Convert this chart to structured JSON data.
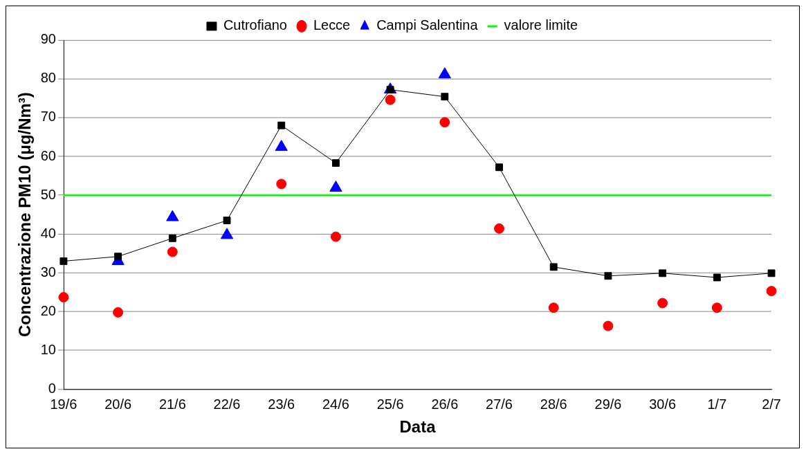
{
  "chart_data": {
    "type": "line",
    "xlabel": "Data",
    "ylabel": "Concentrazione PM10 (μg/Nm³)",
    "categories": [
      "19/6",
      "20/6",
      "21/6",
      "22/6",
      "23/6",
      "24/6",
      "25/6",
      "26/6",
      "27/6",
      "28/6",
      "29/6",
      "30/6",
      "1/7",
      "2/7"
    ],
    "series": [
      {
        "name": "Cutrofiano",
        "type": "line",
        "marker": "square",
        "color": "#000000",
        "values": [
          33.0,
          34.2,
          38.9,
          43.5,
          68.0,
          58.3,
          77.2,
          75.4,
          57.2,
          31.5,
          29.2,
          29.9,
          28.8,
          29.9
        ]
      },
      {
        "name": "Lecce",
        "type": "scatter",
        "marker": "circle",
        "color": "#ff0000",
        "values": [
          23.7,
          19.8,
          35.4,
          null,
          52.9,
          39.3,
          74.6,
          68.8,
          41.4,
          21.0,
          16.3,
          22.2,
          21.0,
          25.3
        ]
      },
      {
        "name": "Campi Salentina",
        "type": "scatter",
        "marker": "triangle",
        "color": "#0000ff",
        "values": [
          null,
          33.0,
          44.3,
          39.7,
          62.4,
          51.9,
          77.2,
          81.1,
          null,
          null,
          null,
          null,
          null,
          null
        ]
      },
      {
        "name": "valore limite",
        "type": "line",
        "marker": "none",
        "color": "#00ff00",
        "values": [
          50,
          50,
          50,
          50,
          50,
          50,
          50,
          50,
          50,
          50,
          50,
          50,
          50,
          50
        ]
      }
    ],
    "ylim": [
      0,
      90
    ],
    "yticks": [
      0,
      10,
      20,
      30,
      40,
      50,
      60,
      70,
      80,
      90
    ],
    "grid": "y",
    "legend": "top"
  }
}
